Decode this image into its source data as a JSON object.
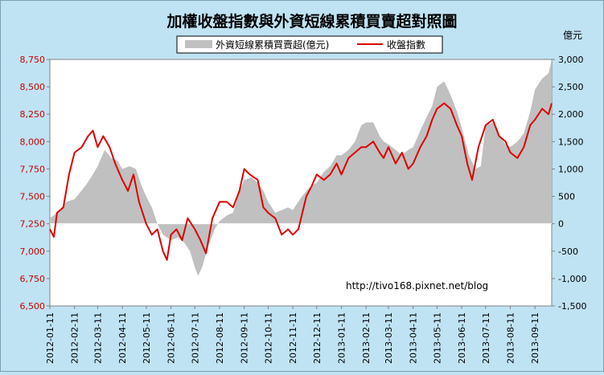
{
  "chart_data": {
    "type": "line",
    "title": "加權收盤指數與外資短線累積買賣超對照圖",
    "right_axis_unit": "億元",
    "watermark": "http://tivo168.pixnet.net/blog",
    "legend": {
      "placement": "top-center"
    },
    "grid": false,
    "y_left": {
      "range": [
        6500,
        8750
      ],
      "ticks": [
        "6,500",
        "6,750",
        "7,000",
        "7,250",
        "7,500",
        "7,750",
        "8,000",
        "8,250",
        "8,500",
        "8,750"
      ],
      "tick_values": [
        6500,
        6750,
        7000,
        7250,
        7500,
        7750,
        8000,
        8250,
        8500,
        8750
      ],
      "color": "#cc0000"
    },
    "y_right": {
      "range": [
        -1500,
        3000
      ],
      "ticks": [
        "-1,500",
        "-1,000",
        "-500",
        "0",
        "500",
        "1,000",
        "1,500",
        "2,000",
        "2,500",
        "3,000"
      ],
      "tick_values": [
        -1500,
        -1000,
        -500,
        0,
        500,
        1000,
        1500,
        2000,
        2500,
        3000
      ]
    },
    "x_ticks": [
      "2012-01-11",
      "2012-02-11",
      "2012-03-11",
      "2012-04-11",
      "2012-05-11",
      "2012-06-11",
      "2012-07-11",
      "2012-08-11",
      "2012-09-11",
      "2012-10-11",
      "2012-11-11",
      "2012-12-11",
      "2013-01-11",
      "2013-02-11",
      "2013-03-11",
      "2013-04-11",
      "2013-05-11",
      "2013-06-11",
      "2013-07-11",
      "2013-08-11",
      "2013-09-11"
    ],
    "series": [
      {
        "name": "外資短線累積買賣超(億元)",
        "kind": "area",
        "axis": "right",
        "color": "#c0c0c0",
        "points": [
          [
            "2012-01-11",
            100
          ],
          [
            "2012-01-20",
            200
          ],
          [
            "2012-02-01",
            400
          ],
          [
            "2012-02-11",
            450
          ],
          [
            "2012-02-25",
            700
          ],
          [
            "2012-03-05",
            900
          ],
          [
            "2012-03-11",
            1050
          ],
          [
            "2012-03-20",
            1350
          ],
          [
            "2012-03-28",
            1200
          ],
          [
            "2012-04-05",
            1150
          ],
          [
            "2012-04-11",
            1000
          ],
          [
            "2012-04-20",
            1050
          ],
          [
            "2012-04-28",
            1000
          ],
          [
            "2012-05-05",
            700
          ],
          [
            "2012-05-11",
            500
          ],
          [
            "2012-05-18",
            300
          ],
          [
            "2012-05-25",
            0
          ],
          [
            "2012-06-01",
            -200
          ],
          [
            "2012-06-11",
            -300
          ],
          [
            "2012-06-20",
            -250
          ],
          [
            "2012-06-28",
            -350
          ],
          [
            "2012-07-05",
            -500
          ],
          [
            "2012-07-11",
            -800
          ],
          [
            "2012-07-15",
            -950
          ],
          [
            "2012-07-20",
            -800
          ],
          [
            "2012-07-28",
            -400
          ],
          [
            "2012-08-05",
            -100
          ],
          [
            "2012-08-11",
            50
          ],
          [
            "2012-08-20",
            150
          ],
          [
            "2012-08-28",
            200
          ],
          [
            "2012-09-05",
            600
          ],
          [
            "2012-09-11",
            800
          ],
          [
            "2012-09-20",
            850
          ],
          [
            "2012-09-28",
            750
          ],
          [
            "2012-10-05",
            600
          ],
          [
            "2012-10-11",
            400
          ],
          [
            "2012-10-20",
            200
          ],
          [
            "2012-10-28",
            250
          ],
          [
            "2012-11-05",
            300
          ],
          [
            "2012-11-11",
            250
          ],
          [
            "2012-11-20",
            450
          ],
          [
            "2012-11-28",
            600
          ],
          [
            "2012-12-05",
            700
          ],
          [
            "2012-12-11",
            750
          ],
          [
            "2012-12-20",
            950
          ],
          [
            "2012-12-28",
            1050
          ],
          [
            "2013-01-05",
            1250
          ],
          [
            "2013-01-11",
            1250
          ],
          [
            "2013-01-20",
            1350
          ],
          [
            "2013-01-28",
            1500
          ],
          [
            "2013-02-05",
            1800
          ],
          [
            "2013-02-11",
            1850
          ],
          [
            "2013-02-20",
            1850
          ],
          [
            "2013-02-28",
            1600
          ],
          [
            "2013-03-05",
            1500
          ],
          [
            "2013-03-11",
            1450
          ],
          [
            "2013-03-20",
            1350
          ],
          [
            "2013-03-28",
            1250
          ],
          [
            "2013-04-05",
            1350
          ],
          [
            "2013-04-11",
            1400
          ],
          [
            "2013-04-20",
            1700
          ],
          [
            "2013-04-28",
            1950
          ],
          [
            "2013-05-05",
            2150
          ],
          [
            "2013-05-11",
            2500
          ],
          [
            "2013-05-20",
            2600
          ],
          [
            "2013-05-28",
            2350
          ],
          [
            "2013-06-05",
            2050
          ],
          [
            "2013-06-11",
            1750
          ],
          [
            "2013-06-20",
            1250
          ],
          [
            "2013-06-28",
            1000
          ],
          [
            "2013-07-05",
            1050
          ],
          [
            "2013-07-11",
            1800
          ],
          [
            "2013-07-20",
            1850
          ],
          [
            "2013-07-28",
            1600
          ],
          [
            "2013-08-05",
            1450
          ],
          [
            "2013-08-11",
            1400
          ],
          [
            "2013-08-20",
            1500
          ],
          [
            "2013-08-28",
            1650
          ],
          [
            "2013-09-05",
            2050
          ],
          [
            "2013-09-11",
            2450
          ],
          [
            "2013-09-20",
            2650
          ],
          [
            "2013-09-28",
            2750
          ],
          [
            "2013-10-02",
            3000
          ]
        ]
      },
      {
        "name": "收盤指數",
        "kind": "line",
        "axis": "left",
        "color": "#dd0000",
        "points": [
          [
            "2012-01-11",
            7200
          ],
          [
            "2012-01-16",
            7130
          ],
          [
            "2012-01-20",
            7350
          ],
          [
            "2012-01-28",
            7400
          ],
          [
            "2012-02-04",
            7700
          ],
          [
            "2012-02-11",
            7900
          ],
          [
            "2012-02-20",
            7950
          ],
          [
            "2012-02-28",
            8050
          ],
          [
            "2012-03-05",
            8100
          ],
          [
            "2012-03-11",
            7950
          ],
          [
            "2012-03-18",
            8050
          ],
          [
            "2012-03-26",
            7950
          ],
          [
            "2012-04-02",
            7800
          ],
          [
            "2012-04-11",
            7650
          ],
          [
            "2012-04-18",
            7550
          ],
          [
            "2012-04-25",
            7700
          ],
          [
            "2012-05-02",
            7450
          ],
          [
            "2012-05-11",
            7250
          ],
          [
            "2012-05-18",
            7150
          ],
          [
            "2012-05-25",
            7200
          ],
          [
            "2012-06-01",
            7000
          ],
          [
            "2012-06-06",
            6920
          ],
          [
            "2012-06-11",
            7150
          ],
          [
            "2012-06-18",
            7200
          ],
          [
            "2012-06-25",
            7100
          ],
          [
            "2012-07-02",
            7300
          ],
          [
            "2012-07-11",
            7200
          ],
          [
            "2012-07-18",
            7100
          ],
          [
            "2012-07-25",
            6980
          ],
          [
            "2012-08-02",
            7300
          ],
          [
            "2012-08-11",
            7450
          ],
          [
            "2012-08-20",
            7450
          ],
          [
            "2012-08-28",
            7400
          ],
          [
            "2012-09-05",
            7550
          ],
          [
            "2012-09-11",
            7750
          ],
          [
            "2012-09-18",
            7700
          ],
          [
            "2012-09-28",
            7650
          ],
          [
            "2012-10-05",
            7400
          ],
          [
            "2012-10-11",
            7350
          ],
          [
            "2012-10-20",
            7300
          ],
          [
            "2012-10-28",
            7150
          ],
          [
            "2012-11-05",
            7200
          ],
          [
            "2012-11-11",
            7150
          ],
          [
            "2012-11-18",
            7200
          ],
          [
            "2012-11-28",
            7500
          ],
          [
            "2012-12-05",
            7600
          ],
          [
            "2012-12-11",
            7700
          ],
          [
            "2012-12-20",
            7650
          ],
          [
            "2012-12-28",
            7700
          ],
          [
            "2013-01-05",
            7800
          ],
          [
            "2013-01-11",
            7700
          ],
          [
            "2013-01-20",
            7850
          ],
          [
            "2013-01-28",
            7900
          ],
          [
            "2013-02-05",
            7950
          ],
          [
            "2013-02-11",
            7950
          ],
          [
            "2013-02-20",
            8000
          ],
          [
            "2013-02-28",
            7900
          ],
          [
            "2013-03-05",
            7850
          ],
          [
            "2013-03-11",
            7950
          ],
          [
            "2013-03-20",
            7800
          ],
          [
            "2013-03-28",
            7900
          ],
          [
            "2013-04-05",
            7750
          ],
          [
            "2013-04-11",
            7800
          ],
          [
            "2013-04-20",
            7950
          ],
          [
            "2013-04-28",
            8050
          ],
          [
            "2013-05-05",
            8200
          ],
          [
            "2013-05-11",
            8300
          ],
          [
            "2013-05-20",
            8350
          ],
          [
            "2013-05-28",
            8300
          ],
          [
            "2013-06-05",
            8150
          ],
          [
            "2013-06-11",
            8050
          ],
          [
            "2013-06-18",
            7800
          ],
          [
            "2013-06-24",
            7650
          ],
          [
            "2013-07-02",
            7950
          ],
          [
            "2013-07-11",
            8150
          ],
          [
            "2013-07-20",
            8200
          ],
          [
            "2013-07-28",
            8050
          ],
          [
            "2013-08-05",
            8000
          ],
          [
            "2013-08-11",
            7900
          ],
          [
            "2013-08-20",
            7850
          ],
          [
            "2013-08-28",
            7950
          ],
          [
            "2013-09-05",
            8150
          ],
          [
            "2013-09-11",
            8200
          ],
          [
            "2013-09-20",
            8300
          ],
          [
            "2013-09-28",
            8250
          ],
          [
            "2013-10-02",
            8350
          ]
        ]
      }
    ]
  }
}
